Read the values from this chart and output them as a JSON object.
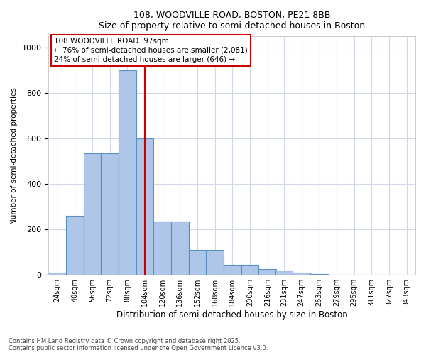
{
  "title_line1": "108, WOODVILLE ROAD, BOSTON, PE21 8BB",
  "title_line2": "Size of property relative to semi-detached houses in Boston",
  "xlabel": "Distribution of semi-detached houses by size in Boston",
  "ylabel": "Number of semi-detached properties",
  "footnote_line1": "Contains HM Land Registry data © Crown copyright and database right 2025.",
  "footnote_line2": "Contains public sector information licensed under the Open Government Licence v3.0.",
  "annotation_title": "108 WOODVILLE ROAD: 97sqm",
  "annotation_line1": "← 76% of semi-detached houses are smaller (2,081)",
  "annotation_line2": "24% of semi-detached houses are larger (646) →",
  "property_size": 104,
  "bar_color": "#aec6e8",
  "bar_edge_color": "#5a8fc2",
  "vline_color": "#cc0000",
  "annotation_box_color": "#cc0000",
  "grid_color": "#d0d8e8",
  "background_color": "#ffffff",
  "categories": [
    "24sqm",
    "40sqm",
    "56sqm",
    "72sqm",
    "88sqm",
    "104sqm",
    "120sqm",
    "136sqm",
    "152sqm",
    "168sqm",
    "184sqm",
    "200sqm",
    "216sqm",
    "231sqm",
    "247sqm",
    "263sqm",
    "279sqm",
    "295sqm",
    "311sqm",
    "327sqm",
    "343sqm"
  ],
  "bin_starts": [
    16,
    32,
    48,
    64,
    80,
    96,
    112,
    128,
    144,
    160,
    176,
    192,
    208,
    223,
    239,
    255,
    271,
    287,
    303,
    319,
    335
  ],
  "bin_width": 16,
  "values": [
    10,
    260,
    535,
    535,
    900,
    600,
    235,
    235,
    110,
    110,
    45,
    45,
    25,
    20,
    10,
    5,
    2,
    1,
    0,
    0,
    0
  ],
  "ylim": [
    0,
    1050
  ],
  "yticks": [
    0,
    200,
    400,
    600,
    800,
    1000
  ]
}
